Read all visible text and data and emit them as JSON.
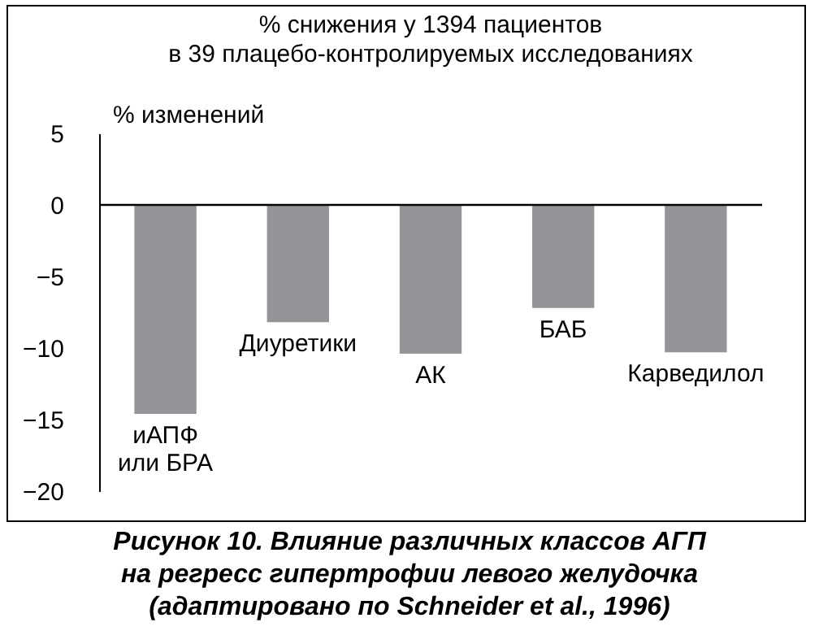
{
  "chart_data": {
    "type": "bar",
    "title": "% снижения у 1394 пациентов\nв 39 плацебо-контролируемых исследованиях",
    "ylabel": "% изменений",
    "categories": [
      "иАПФ\nили БРА",
      "Диуретики",
      "АК",
      "БАБ",
      "Карведилол"
    ],
    "values": [
      -14.6,
      -8.2,
      -10.4,
      -7.2,
      -10.3
    ],
    "color": "#939598",
    "ylim": [
      -20,
      5
    ],
    "yticks": [
      5,
      0,
      -5,
      -10,
      -15,
      -20
    ],
    "ref_lines": [
      {
        "axis": "y",
        "value": 0
      }
    ],
    "annotations": [
      "Рисунок 10.  Влияние различных классов АГП\nна регресс гипертрофии левого желудочка\n(адаптировано по Schneider et al., 1996)"
    ]
  }
}
